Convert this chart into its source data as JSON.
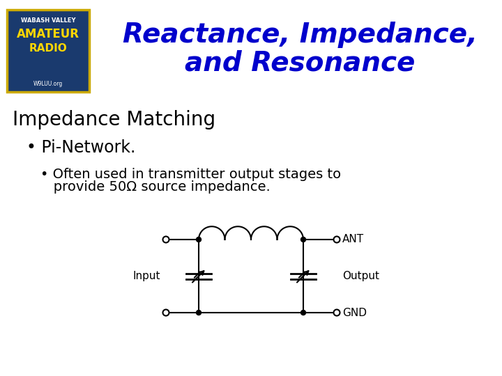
{
  "title_line1": "Reactance, Impedance,",
  "title_line2": "and Resonance",
  "title_color": "#0000CC",
  "title_fontsize": 28,
  "heading": "Impedance Matching",
  "heading_fontsize": 20,
  "bullet1": "Pi-Network.",
  "bullet1_fontsize": 17,
  "bullet2_line1": "• Often used in transmitter output stages to",
  "bullet2_line2": "   provide 50Ω source impedance.",
  "bullet2_fontsize": 14,
  "bg_color": "#ffffff",
  "text_color": "#000000",
  "circuit_color": "#000000",
  "logo_bg": "#1a3a6e",
  "logo_border": "#ccaa00",
  "logo_text1": "WABASH VALLEY",
  "logo_text2": "AMATEUR",
  "logo_text3": "RADIO",
  "logo_text4": "W9LUU.org"
}
